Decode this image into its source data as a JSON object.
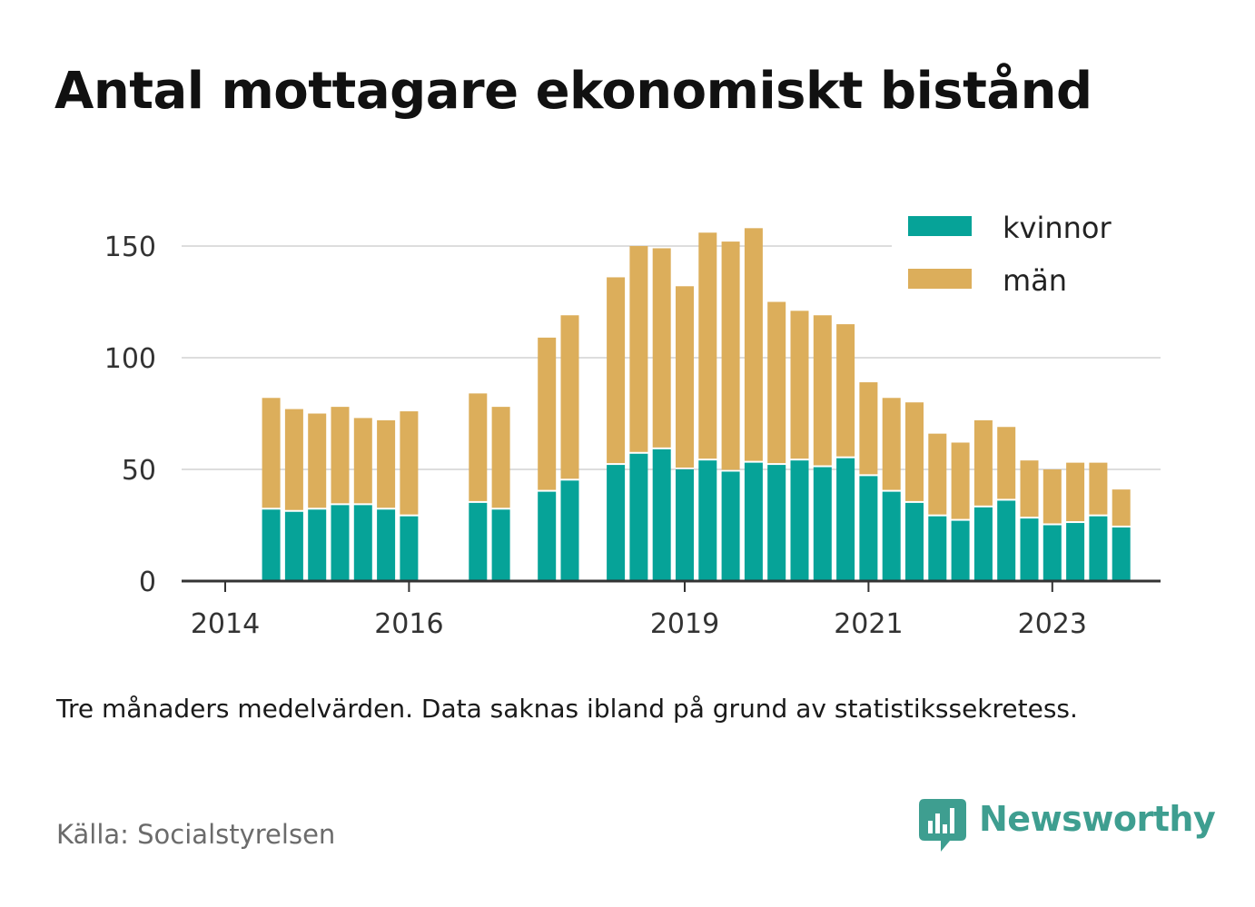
{
  "title": "Antal mottagare ekonomiskt bistånd",
  "note": "Tre månaders medelvärden. Data saknas ibland på grund av statistikssekretess.",
  "source": "Källa: Socialstyrelsen",
  "brand": {
    "name": "Newsworthy",
    "icon": "newsworthy-logo-icon",
    "color": "#3e9e90"
  },
  "colors": {
    "kvinnor": "#06a398",
    "man": "#dcae5b",
    "grid": "#dddddd",
    "axis": "#333333"
  },
  "chart_data": {
    "type": "bar",
    "stacked": true,
    "x_unit": "quarter",
    "x": [
      "2014 Q2",
      "2014 Q3",
      "2014 Q4",
      "2015 Q1",
      "2015 Q2",
      "2015 Q3",
      "2015 Q4",
      "2016 Q1",
      "2016 Q2",
      "2016 Q3",
      "2016 Q4",
      "2017 Q1",
      "2017 Q2",
      "2017 Q3",
      "2017 Q4",
      "2018 Q1",
      "2018 Q2",
      "2018 Q3",
      "2018 Q4",
      "2019 Q1",
      "2019 Q2",
      "2019 Q3",
      "2019 Q4",
      "2020 Q1",
      "2020 Q2",
      "2020 Q3",
      "2020 Q4",
      "2021 Q1",
      "2021 Q2",
      "2021 Q3",
      "2021 Q4",
      "2022 Q1",
      "2022 Q2",
      "2022 Q3",
      "2022 Q4",
      "2023 Q1",
      "2023 Q2",
      "2023 Q3",
      "2023 Q4"
    ],
    "series": [
      {
        "name": "kvinnor",
        "values": [
          32,
          31,
          32,
          34,
          34,
          32,
          29,
          null,
          null,
          35,
          32,
          null,
          40,
          45,
          null,
          52,
          57,
          59,
          50,
          54,
          49,
          53,
          52,
          54,
          51,
          55,
          47,
          40,
          35,
          29,
          27,
          33,
          36,
          28,
          25,
          26,
          29,
          24,
          null
        ]
      },
      {
        "name": "män",
        "values": [
          50,
          46,
          43,
          44,
          39,
          40,
          47,
          null,
          null,
          49,
          46,
          null,
          69,
          74,
          null,
          84,
          93,
          90,
          82,
          102,
          103,
          105,
          73,
          67,
          68,
          60,
          42,
          42,
          45,
          37,
          35,
          39,
          33,
          26,
          25,
          27,
          24,
          17,
          null
        ]
      }
    ],
    "x_ticks": [
      "2014",
      "2016",
      "2019",
      "2021",
      "2023"
    ],
    "y_ticks": [
      0,
      50,
      100,
      150
    ],
    "ylim": [
      0,
      175
    ],
    "grid": "horizontal",
    "legend": {
      "position": "top-right",
      "entries": [
        "kvinnor",
        "män"
      ]
    }
  }
}
